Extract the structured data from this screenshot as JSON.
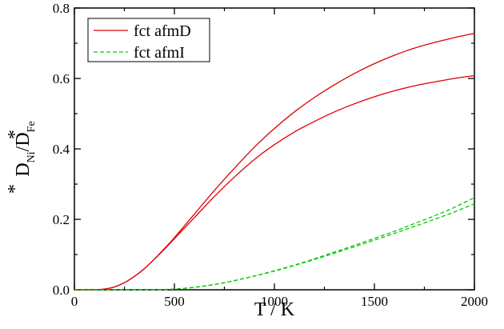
{
  "chart_data": {
    "type": "line",
    "title": "",
    "xlabel": "T / K",
    "ylabel": {
      "D1": "D",
      "sup1": "*",
      "sub1": "Ni",
      "slash": "/D",
      "sup2": "*",
      "sub2": "Fe"
    },
    "xlim": [
      0,
      2000
    ],
    "ylim": [
      0,
      0.8
    ],
    "xticks": [
      0,
      500,
      1000,
      1500,
      2000
    ],
    "xtick_labels": [
      "0",
      "500",
      "1000",
      "1500",
      "2000"
    ],
    "yticks": [
      0,
      0.2,
      0.4,
      0.6,
      0.8
    ],
    "ytick_labels": [
      "0.0",
      "0.2",
      "0.4",
      "0.6",
      "0.8"
    ],
    "grid": false,
    "legend_position": "top-left",
    "legend": [
      {
        "label": "fct afmD",
        "color": "#e00000",
        "dash": "solid"
      },
      {
        "label": "fct afmI",
        "color": "#00cc00",
        "dash": "dashed"
      }
    ],
    "series": [
      {
        "name": "fct afmD",
        "color": "#e00000",
        "dash": "solid",
        "x": [
          0,
          100,
          150,
          200,
          250,
          300,
          350,
          400,
          450,
          500,
          600,
          700,
          800,
          900,
          1000,
          1100,
          1200,
          1300,
          1400,
          1500,
          1600,
          1700,
          1800,
          1900,
          2000
        ],
        "y": [
          0,
          0.0005,
          0.002,
          0.008,
          0.02,
          0.038,
          0.06,
          0.087,
          0.115,
          0.145,
          0.205,
          0.265,
          0.32,
          0.37,
          0.412,
          0.448,
          0.478,
          0.505,
          0.528,
          0.548,
          0.565,
          0.579,
          0.59,
          0.6,
          0.608
        ]
      },
      {
        "name": "fct afmD",
        "color": "#e00000",
        "dash": "solid",
        "x": [
          0,
          100,
          150,
          200,
          250,
          300,
          350,
          400,
          450,
          500,
          600,
          700,
          800,
          900,
          1000,
          1100,
          1200,
          1300,
          1400,
          1500,
          1600,
          1700,
          1800,
          1900,
          2000
        ],
        "y": [
          0,
          0.0005,
          0.002,
          0.008,
          0.02,
          0.038,
          0.06,
          0.087,
          0.117,
          0.148,
          0.215,
          0.282,
          0.345,
          0.405,
          0.458,
          0.505,
          0.546,
          0.582,
          0.614,
          0.642,
          0.666,
          0.686,
          0.702,
          0.716,
          0.728
        ]
      },
      {
        "name": "fct afmI",
        "color": "#00cc00",
        "dash": "dashed",
        "x": [
          0,
          300,
          400,
          500,
          600,
          700,
          800,
          900,
          1000,
          1100,
          1200,
          1300,
          1400,
          1500,
          1600,
          1700,
          1800,
          1900,
          2000
        ],
        "y": [
          0,
          0,
          0.0002,
          0.002,
          0.007,
          0.015,
          0.026,
          0.039,
          0.053,
          0.069,
          0.086,
          0.104,
          0.122,
          0.141,
          0.16,
          0.18,
          0.2,
          0.221,
          0.244
        ]
      },
      {
        "name": "fct afmI",
        "color": "#00cc00",
        "dash": "dashed",
        "x": [
          0,
          300,
          400,
          500,
          600,
          700,
          800,
          900,
          1000,
          1100,
          1200,
          1300,
          1400,
          1500,
          1600,
          1700,
          1800,
          1900,
          2000
        ],
        "y": [
          0,
          0,
          0.0002,
          0.002,
          0.007,
          0.015,
          0.026,
          0.039,
          0.054,
          0.07,
          0.088,
          0.107,
          0.126,
          0.146,
          0.166,
          0.188,
          0.21,
          0.234,
          0.262
        ]
      }
    ]
  }
}
